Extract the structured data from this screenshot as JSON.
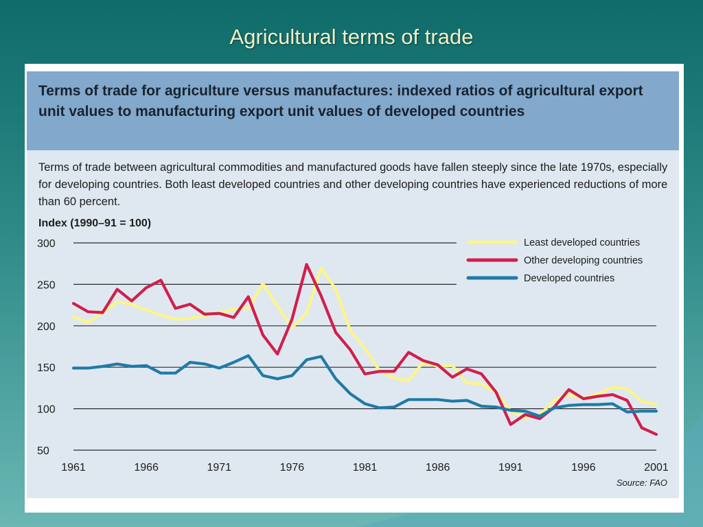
{
  "slide": {
    "title": "Agricultural terms of trade"
  },
  "figure": {
    "title": "Terms of trade for agriculture versus manufactures: indexed ratios of agricultural export unit values to manufacturing export unit values of developed countries",
    "description": "Terms of trade between agricultural commodities and manufactured goods have fallen steeply since the late 1970s, especially for developing countries. Both least developed countries and other developing countries have experienced reductions of more than 60 percent.",
    "source": "Source: FAO"
  },
  "colors": {
    "least_developed": "#fbf58a",
    "other_developing": "#d01f4d",
    "developed": "#1f7aa8",
    "header_bar": "#82a8cc",
    "panel_bg": "#dfe8f0"
  },
  "chart_data": {
    "type": "line",
    "ylabel": "Index (1990–91 = 100)",
    "ylim": [
      50,
      300
    ],
    "yticks": [
      50,
      100,
      150,
      200,
      250,
      300
    ],
    "xlim": [
      1961,
      2001
    ],
    "xticks": [
      1961,
      1966,
      1971,
      1976,
      1981,
      1986,
      1991,
      1996,
      2001
    ],
    "gridlines": "horizontal",
    "legend_position": "top-right",
    "source": "Source: FAO",
    "x": [
      1961,
      1962,
      1963,
      1964,
      1965,
      1966,
      1967,
      1968,
      1969,
      1970,
      1971,
      1972,
      1973,
      1974,
      1975,
      1976,
      1977,
      1978,
      1979,
      1980,
      1981,
      1982,
      1983,
      1984,
      1985,
      1986,
      1987,
      1988,
      1989,
      1990,
      1991,
      1992,
      1993,
      1994,
      1995,
      1996,
      1997,
      1998,
      1999,
      2000,
      2001
    ],
    "series": [
      {
        "name": "Least developed countries",
        "color": "#fbf58a",
        "values": [
          211,
          204,
          216,
          229,
          226,
          219,
          213,
          208,
          209,
          212,
          216,
          220,
          221,
          251,
          224,
          198,
          215,
          270,
          244,
          194,
          173,
          146,
          137,
          134,
          156,
          151,
          152,
          131,
          130,
          120,
          97,
          89,
          93,
          110,
          117,
          113,
          118,
          126,
          124,
          109,
          105
        ]
      },
      {
        "name": "Other developing countries",
        "color": "#d01f4d",
        "values": [
          227,
          217,
          216,
          244,
          230,
          246,
          255,
          221,
          226,
          214,
          215,
          210,
          235,
          189,
          166,
          208,
          274,
          236,
          192,
          171,
          142,
          145,
          145,
          168,
          158,
          153,
          138,
          148,
          142,
          120,
          81,
          93,
          88,
          102,
          123,
          112,
          115,
          117,
          110,
          77,
          69
        ]
      },
      {
        "name": "Developed countries",
        "color": "#1f7aa8",
        "values": [
          149,
          149,
          151,
          154,
          151,
          152,
          143,
          143,
          156,
          154,
          149,
          156,
          164,
          140,
          136,
          140,
          159,
          163,
          136,
          118,
          106,
          101,
          102,
          111,
          111,
          111,
          109,
          110,
          103,
          102,
          98,
          97,
          91,
          101,
          104,
          105,
          105,
          106,
          96,
          97,
          97
        ]
      }
    ]
  }
}
